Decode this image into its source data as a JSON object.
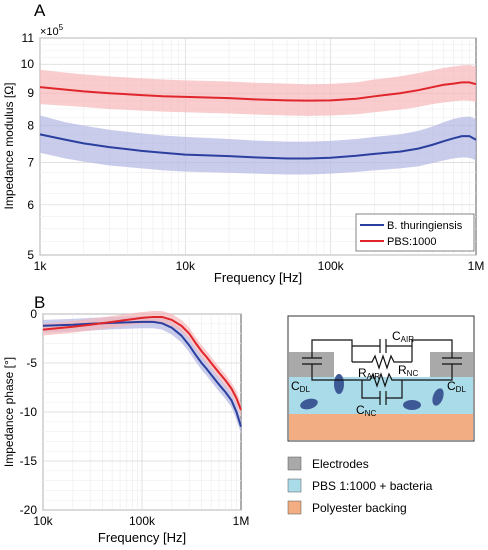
{
  "panel_a_label": "A",
  "panel_b_label": "B",
  "chart_data": [
    {
      "type": "line",
      "panel": "A",
      "title": "",
      "xlabel": "Frequency [Hz]",
      "ylabel": "Impedance modulus [Ω]",
      "x_scale": "log",
      "y_scale": "log",
      "y_multiplier": "×10^5",
      "y_multiplier_base": "×10",
      "y_multiplier_exp": "5",
      "xlim": [
        1000,
        1000000
      ],
      "ylim": [
        5,
        11
      ],
      "xticks": [
        1000,
        10000,
        100000,
        1000000
      ],
      "xtick_labels": [
        "1k",
        "10k",
        "100k",
        "1M"
      ],
      "yticks": [
        5,
        6,
        7,
        8,
        9,
        10,
        11
      ],
      "ytick_labels": [
        "5",
        "6",
        "7",
        "8",
        "9",
        "10",
        "11"
      ],
      "grid": true,
      "legend_position": "bottom-right",
      "series": [
        {
          "name": "B. thuringiensis",
          "color": "#2b3f9e",
          "band_color": "#b3b6e3",
          "x": [
            1000,
            1500,
            2000,
            3000,
            5000,
            7000,
            10000,
            20000,
            30000,
            50000,
            70000,
            100000,
            150000,
            200000,
            300000,
            400000,
            500000,
            600000,
            700000,
            800000,
            900000,
            1000000
          ],
          "y": [
            7.75,
            7.6,
            7.5,
            7.4,
            7.3,
            7.25,
            7.2,
            7.16,
            7.13,
            7.1,
            7.1,
            7.12,
            7.17,
            7.22,
            7.28,
            7.36,
            7.46,
            7.56,
            7.64,
            7.7,
            7.7,
            7.6
          ],
          "y_low": [
            7.25,
            7.1,
            7.02,
            6.92,
            6.85,
            6.8,
            6.77,
            6.74,
            6.72,
            6.7,
            6.7,
            6.72,
            6.76,
            6.8,
            6.85,
            6.9,
            6.98,
            7.05,
            7.1,
            7.13,
            7.12,
            7.05
          ],
          "y_high": [
            8.3,
            8.1,
            8.0,
            7.88,
            7.78,
            7.72,
            7.68,
            7.62,
            7.58,
            7.55,
            7.55,
            7.57,
            7.62,
            7.68,
            7.75,
            7.85,
            7.97,
            8.1,
            8.2,
            8.25,
            8.27,
            8.2
          ]
        },
        {
          "name": "PBS:1000",
          "color": "#e0262b",
          "band_color": "#f7b6b9",
          "x": [
            1000,
            1500,
            2000,
            3000,
            5000,
            7000,
            10000,
            20000,
            30000,
            50000,
            70000,
            100000,
            150000,
            200000,
            300000,
            400000,
            500000,
            600000,
            700000,
            800000,
            900000,
            1000000
          ],
          "y": [
            9.2,
            9.12,
            9.06,
            9.0,
            8.94,
            8.9,
            8.88,
            8.84,
            8.8,
            8.77,
            8.76,
            8.77,
            8.82,
            8.9,
            9.0,
            9.1,
            9.2,
            9.28,
            9.32,
            9.36,
            9.36,
            9.3
          ],
          "y_low": [
            8.65,
            8.6,
            8.56,
            8.5,
            8.45,
            8.42,
            8.4,
            8.36,
            8.33,
            8.3,
            8.29,
            8.3,
            8.34,
            8.4,
            8.48,
            8.56,
            8.65,
            8.7,
            8.74,
            8.77,
            8.76,
            8.72
          ],
          "y_high": [
            9.8,
            9.7,
            9.64,
            9.57,
            9.5,
            9.46,
            9.43,
            9.39,
            9.35,
            9.32,
            9.3,
            9.31,
            9.36,
            9.46,
            9.57,
            9.68,
            9.78,
            9.87,
            9.92,
            9.96,
            9.97,
            9.92
          ]
        }
      ]
    },
    {
      "type": "line",
      "panel": "B",
      "title": "",
      "xlabel": "Frequency [Hz]",
      "ylabel": "Impedance phase [°]",
      "x_scale": "log",
      "y_scale": "linear",
      "xlim": [
        10000,
        1000000
      ],
      "ylim": [
        -20,
        0
      ],
      "xticks": [
        10000,
        100000,
        1000000
      ],
      "xtick_labels": [
        "10k",
        "100k",
        "1M"
      ],
      "yticks": [
        0,
        -5,
        -10,
        -15,
        -20
      ],
      "ytick_labels": [
        "0",
        "-5",
        "-10",
        "-15",
        "-20"
      ],
      "grid": true,
      "series": [
        {
          "name": "",
          "color": "#2b3f9e",
          "band_color": "#b3b6e3",
          "x": [
            10000,
            20000,
            30000,
            50000,
            70000,
            100000,
            130000,
            160000,
            200000,
            250000,
            300000,
            350000,
            400000,
            450000,
            500000,
            600000,
            700000,
            800000,
            900000,
            1000000
          ],
          "y": [
            -1.2,
            -1.1,
            -1.0,
            -0.9,
            -0.85,
            -0.8,
            -0.8,
            -0.95,
            -1.4,
            -2.2,
            -3.2,
            -4.2,
            -5.0,
            -5.6,
            -6.2,
            -7.2,
            -8.0,
            -8.8,
            -10.0,
            -11.5
          ],
          "y_low": [
            -1.9,
            -1.8,
            -1.7,
            -1.55,
            -1.5,
            -1.45,
            -1.45,
            -1.6,
            -2.1,
            -2.9,
            -3.9,
            -4.9,
            -5.7,
            -6.3,
            -6.9,
            -7.9,
            -8.7,
            -9.5,
            -10.8,
            -12.2
          ],
          "y_high": [
            -0.6,
            -0.5,
            -0.4,
            -0.3,
            -0.25,
            -0.2,
            -0.2,
            -0.35,
            -0.8,
            -1.5,
            -2.5,
            -3.5,
            -4.3,
            -4.9,
            -5.5,
            -6.5,
            -7.3,
            -8.1,
            -9.2,
            -10.7
          ]
        },
        {
          "name": "",
          "color": "#e0262b",
          "band_color": "#f7b6b9",
          "x": [
            10000,
            20000,
            30000,
            50000,
            70000,
            100000,
            130000,
            160000,
            200000,
            250000,
            300000,
            350000,
            400000,
            450000,
            500000,
            600000,
            700000,
            800000,
            900000,
            1000000
          ],
          "y": [
            -1.6,
            -1.3,
            -1.1,
            -0.8,
            -0.6,
            -0.4,
            -0.3,
            -0.3,
            -0.6,
            -1.2,
            -2.0,
            -3.0,
            -3.8,
            -4.4,
            -5.0,
            -6.0,
            -6.8,
            -7.6,
            -8.6,
            -9.8
          ],
          "y_low": [
            -2.2,
            -1.9,
            -1.7,
            -1.4,
            -1.2,
            -1.0,
            -0.9,
            -0.9,
            -1.2,
            -1.8,
            -2.6,
            -3.6,
            -4.4,
            -5.0,
            -5.6,
            -6.6,
            -7.4,
            -8.2,
            -9.3,
            -10.5
          ],
          "y_high": [
            -1.0,
            -0.7,
            -0.5,
            -0.2,
            0.0,
            0.2,
            0.3,
            0.3,
            0.0,
            -0.6,
            -1.4,
            -2.4,
            -3.2,
            -3.8,
            -4.4,
            -5.4,
            -6.2,
            -7.0,
            -7.9,
            -9.1
          ]
        }
      ]
    }
  ],
  "diagram": {
    "labels": {
      "c_air": "C",
      "c_air_sub": "AIR",
      "r_air": "R",
      "r_air_sub": "AIR",
      "r_nc": "R",
      "r_nc_sub": "NC",
      "c_nc": "C",
      "c_nc_sub": "NC",
      "c_dl_left": "C",
      "c_dl_left_sub": "DL",
      "c_dl_right": "C",
      "c_dl_right_sub": "DL"
    },
    "colors": {
      "electrodes": "#a9a9a9",
      "pbs": "#aadbe8",
      "polyester": "#f2ad82",
      "bacteria": "#3d5a96"
    },
    "legend": [
      {
        "label": "Electrodes",
        "color": "#a9a9a9"
      },
      {
        "label": "PBS 1:1000 + bacteria",
        "color": "#aadbe8"
      },
      {
        "label": "Polyester backing",
        "color": "#f2ad82"
      }
    ]
  }
}
